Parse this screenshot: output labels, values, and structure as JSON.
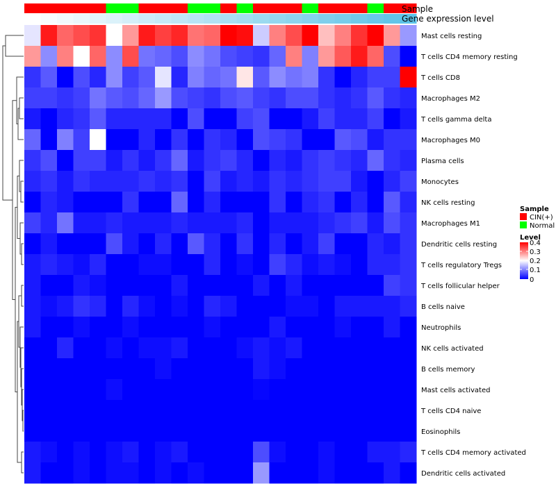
{
  "chart_data": {
    "type": "heatmap",
    "title": "",
    "annotation_tracks": [
      "Sample",
      "Gene expression level"
    ],
    "sample_groups": [
      "CIN(+)",
      "CIN(+)",
      "CIN(+)",
      "CIN(+)",
      "CIN(+)",
      "Normal",
      "Normal",
      "CIN(+)",
      "CIN(+)",
      "CIN(+)",
      "Normal",
      "Normal",
      "CIN(+)",
      "Normal",
      "CIN(+)",
      "CIN(+)",
      "CIN(+)",
      "Normal",
      "CIN(+)",
      "CIN(+)",
      "CIN(+)",
      "Normal",
      "CIN(+)",
      "CIN(+)"
    ],
    "expression_gradient": [
      "#ffffff",
      "#5bc2e7"
    ],
    "rows": [
      "Mast cells resting",
      "T cells CD4 memory resting",
      "T cells CD8",
      "Macrophages M2",
      "T cells gamma delta",
      "Macrophages M0",
      "Plasma cells",
      "Monocytes",
      "NK cells resting",
      "Macrophages M1",
      "Dendritic cells resting",
      "T cells regulatory  Tregs",
      "T cells follicular helper",
      "B cells naive",
      "Neutrophils",
      "NK cells activated",
      "B cells memory",
      "Mast cells activated",
      "T cells CD4 naive",
      "Eosinophils",
      "T cells CD4 memory activated",
      "Dendritic cells activated"
    ],
    "values": [
      [
        0.18,
        0.38,
        0.32,
        0.34,
        0.36,
        0.2,
        0.28,
        0.38,
        0.35,
        0.37,
        0.31,
        0.32,
        0.4,
        0.39,
        0.16,
        0.3,
        0.34,
        0.4,
        0.25,
        0.3,
        0.36,
        0.4,
        0.28,
        0.12
      ],
      [
        0.28,
        0.11,
        0.3,
        0.2,
        0.32,
        0.11,
        0.34,
        0.09,
        0.08,
        0.06,
        0.11,
        0.09,
        0.06,
        0.05,
        0.04,
        0.08,
        0.3,
        0.1,
        0.28,
        0.33,
        0.38,
        0.32,
        0.06,
        0.0
      ],
      [
        0.04,
        0.07,
        0.0,
        0.06,
        0.03,
        0.11,
        0.05,
        0.07,
        0.18,
        0.03,
        0.1,
        0.08,
        0.09,
        0.22,
        0.07,
        0.11,
        0.09,
        0.1,
        0.04,
        0.0,
        0.03,
        0.05,
        0.05,
        0.4
      ],
      [
        0.05,
        0.05,
        0.04,
        0.05,
        0.09,
        0.07,
        0.06,
        0.08,
        0.12,
        0.06,
        0.05,
        0.04,
        0.06,
        0.07,
        0.05,
        0.04,
        0.06,
        0.06,
        0.04,
        0.03,
        0.04,
        0.07,
        0.04,
        0.03
      ],
      [
        0.02,
        0.0,
        0.03,
        0.04,
        0.07,
        0.03,
        0.03,
        0.03,
        0.03,
        0.0,
        0.06,
        0.0,
        0.0,
        0.05,
        0.06,
        0.0,
        0.0,
        0.02,
        0.05,
        0.03,
        0.03,
        0.05,
        0.0,
        0.02
      ],
      [
        0.08,
        0.0,
        0.1,
        0.05,
        0.2,
        0.0,
        0.0,
        0.03,
        0.0,
        0.04,
        0.0,
        0.04,
        0.03,
        0.0,
        0.06,
        0.05,
        0.04,
        0.0,
        0.0,
        0.07,
        0.06,
        0.02,
        0.04,
        0.04
      ],
      [
        0.04,
        0.06,
        0.0,
        0.05,
        0.05,
        0.02,
        0.04,
        0.02,
        0.04,
        0.08,
        0.02,
        0.04,
        0.05,
        0.03,
        0.0,
        0.03,
        0.02,
        0.04,
        0.05,
        0.04,
        0.03,
        0.08,
        0.04,
        0.03
      ],
      [
        0.03,
        0.04,
        0.02,
        0.04,
        0.03,
        0.03,
        0.03,
        0.04,
        0.03,
        0.04,
        0.0,
        0.05,
        0.02,
        0.03,
        0.02,
        0.04,
        0.03,
        0.04,
        0.05,
        0.05,
        0.02,
        0.0,
        0.03,
        0.05
      ],
      [
        0.0,
        0.03,
        0.02,
        0.0,
        0.0,
        0.0,
        0.04,
        0.0,
        0.0,
        0.08,
        0.0,
        0.03,
        0.0,
        0.0,
        0.0,
        0.04,
        0.0,
        0.03,
        0.04,
        0.0,
        0.03,
        0.0,
        0.07,
        0.03
      ],
      [
        0.05,
        0.03,
        0.09,
        0.02,
        0.02,
        0.03,
        0.02,
        0.02,
        0.02,
        0.03,
        0.02,
        0.02,
        0.02,
        0.03,
        0.0,
        0.02,
        0.02,
        0.02,
        0.03,
        0.04,
        0.05,
        0.02,
        0.06,
        0.04
      ],
      [
        0.0,
        0.02,
        0.0,
        0.0,
        0.0,
        0.06,
        0.02,
        0.0,
        0.03,
        0.0,
        0.07,
        0.03,
        0.0,
        0.04,
        0.0,
        0.03,
        0.0,
        0.02,
        0.05,
        0.0,
        0.0,
        0.03,
        0.02,
        0.04
      ],
      [
        0.02,
        0.03,
        0.02,
        0.01,
        0.03,
        0.0,
        0.0,
        0.01,
        0.01,
        0.0,
        0.0,
        0.03,
        0.0,
        0.01,
        0.0,
        0.05,
        0.03,
        0.01,
        0.02,
        0.01,
        0.0,
        0.03,
        0.03,
        0.04
      ],
      [
        0.02,
        0.0,
        0.0,
        0.02,
        0.01,
        0.0,
        0.0,
        0.0,
        0.0,
        0.02,
        0.0,
        0.0,
        0.0,
        0.0,
        0.02,
        0.0,
        0.02,
        0.0,
        0.0,
        0.0,
        0.0,
        0.0,
        0.05,
        0.04
      ],
      [
        0.02,
        0.01,
        0.02,
        0.04,
        0.03,
        0.0,
        0.03,
        0.01,
        0.0,
        0.01,
        0.0,
        0.03,
        0.02,
        0.0,
        0.0,
        0.0,
        0.01,
        0.01,
        0.0,
        0.02,
        0.02,
        0.02,
        0.02,
        0.03
      ],
      [
        0.02,
        0.0,
        0.0,
        0.01,
        0.0,
        0.0,
        0.01,
        0.0,
        0.0,
        0.0,
        0.0,
        0.01,
        0.0,
        0.0,
        0.0,
        0.02,
        0.0,
        0.0,
        0.0,
        0.01,
        0.0,
        0.0,
        0.02,
        0.0
      ],
      [
        0.0,
        0.0,
        0.03,
        0.0,
        0.0,
        0.01,
        0.0,
        0.01,
        0.01,
        0.02,
        0.0,
        0.0,
        0.0,
        0.01,
        0.02,
        0.01,
        0.02,
        0.0,
        0.0,
        0.0,
        0.0,
        0.0,
        0.0,
        0.0
      ],
      [
        0.0,
        0.0,
        0.0,
        0.0,
        0.0,
        0.0,
        0.0,
        0.0,
        0.01,
        0.0,
        0.0,
        0.0,
        0.0,
        0.0,
        0.02,
        0.01,
        0.0,
        0.0,
        0.0,
        0.0,
        0.0,
        0.0,
        0.0,
        0.0
      ],
      [
        0.0,
        0.0,
        0.0,
        0.0,
        0.0,
        0.01,
        0.0,
        0.0,
        0.0,
        0.0,
        0.0,
        0.0,
        0.0,
        0.0,
        0.005,
        0.0,
        0.0,
        0.0,
        0.0,
        0.0,
        0.0,
        0.0,
        0.0,
        0.0
      ],
      [
        0.0,
        0.0,
        0.0,
        0.0,
        0.0,
        0.0,
        0.0,
        0.0,
        0.0,
        0.0,
        0.0,
        0.0,
        0.0,
        0.0,
        0.0,
        0.0,
        0.0,
        0.0,
        0.0,
        0.0,
        0.0,
        0.0,
        0.0,
        0.0
      ],
      [
        0.0,
        0.0,
        0.0,
        0.0,
        0.0,
        0.0,
        0.0,
        0.0,
        0.0,
        0.0,
        0.0,
        0.0,
        0.0,
        0.0,
        0.0,
        0.0,
        0.0,
        0.0,
        0.0,
        0.0,
        0.0,
        0.0,
        0.0,
        0.0
      ],
      [
        0.02,
        0.01,
        0.0,
        0.01,
        0.0,
        0.01,
        0.02,
        0.0,
        0.01,
        0.02,
        0.0,
        0.0,
        0.0,
        0.0,
        0.06,
        0.01,
        0.0,
        0.0,
        0.01,
        0.0,
        0.0,
        0.02,
        0.02,
        0.03
      ],
      [
        0.02,
        0.0,
        0.0,
        0.01,
        0.0,
        0.01,
        0.01,
        0.0,
        0.01,
        0.0,
        0.01,
        0.0,
        0.0,
        0.0,
        0.12,
        0.0,
        0.0,
        0.0,
        0.01,
        0.0,
        0.0,
        0.0,
        0.02,
        0.0
      ]
    ],
    "colorscale": [
      [
        "0",
        "#0000ff"
      ],
      [
        "0.2",
        "#ffffff"
      ],
      [
        "0.4",
        "#ff0000"
      ]
    ],
    "value_range": [
      0,
      0.4
    ],
    "legend": {
      "sample_title": "Sample",
      "groups": [
        {
          "label": "CIN(+)",
          "color": "#ff0000"
        },
        {
          "label": "Normal",
          "color": "#00ff00"
        }
      ],
      "level_title": "Level",
      "level_ticks": [
        "0.4",
        "0.3",
        "0.2",
        "0.1",
        "0"
      ],
      "placement": "right"
    }
  }
}
